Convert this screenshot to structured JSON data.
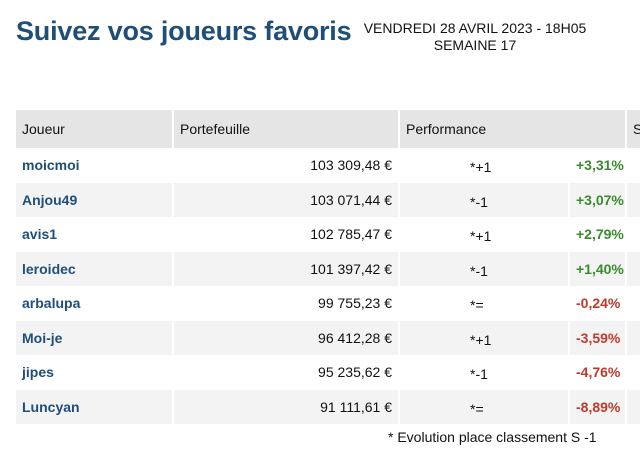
{
  "header": {
    "title": "Suivez vos joueurs favoris",
    "date_line": "VENDREDI 28 AVRIL 2023 - 18H05",
    "week_line": "SEMAINE 17"
  },
  "table": {
    "columns": {
      "player": "Joueur",
      "wallet": "Portefeuille",
      "performance": "Performance",
      "next": "S"
    },
    "rows": [
      {
        "player": "moicmoi",
        "wallet": "103 309,48 €",
        "evolution": "*+1",
        "performance": "+3,31%",
        "trend": "pos"
      },
      {
        "player": "Anjou49",
        "wallet": "103 071,44 €",
        "evolution": "*-1",
        "performance": "+3,07%",
        "trend": "pos"
      },
      {
        "player": "avis1",
        "wallet": "102 785,47 €",
        "evolution": "*+1",
        "performance": "+2,79%",
        "trend": "pos"
      },
      {
        "player": "leroidec",
        "wallet": "101 397,42 €",
        "evolution": "*-1",
        "performance": "+1,40%",
        "trend": "pos"
      },
      {
        "player": "arbalupa",
        "wallet": "99 755,23 €",
        "evolution": "*=",
        "performance": "-0,24%",
        "trend": "neg"
      },
      {
        "player": "Moi-je",
        "wallet": "96 412,28 €",
        "evolution": "*+1",
        "performance": "-3,59%",
        "trend": "neg"
      },
      {
        "player": "jipes",
        "wallet": "95 235,62 €",
        "evolution": "*-1",
        "performance": "-4,76%",
        "trend": "neg"
      },
      {
        "player": "Luncyan",
        "wallet": "91 111,61 €",
        "evolution": "*=",
        "performance": "-8,89%",
        "trend": "neg"
      }
    ]
  },
  "footnote": "* Evolution place classement S -1",
  "colors": {
    "title": "#1f4e79",
    "positive": "#3a8a2e",
    "negative": "#c0392b",
    "header_bg": "#e5e5e5",
    "stripe_bg": "#f3f3f3"
  }
}
